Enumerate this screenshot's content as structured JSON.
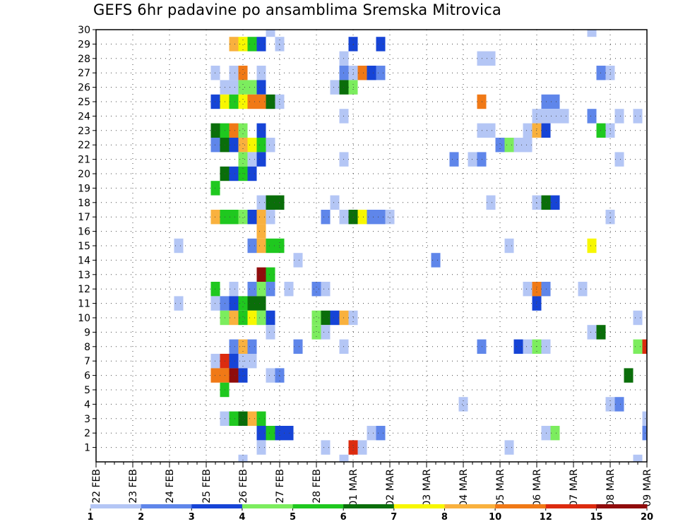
{
  "chart_data": {
    "type": "heatmap",
    "title": "GEFS 6hr padavine po ansamblima Sremska Mitrovica",
    "xlabel": "",
    "ylabel": "",
    "x_tick_labels": [
      "22 FEB",
      "23 FEB",
      "24 FEB",
      "25 FEB",
      "26 FEB",
      "27 FEB",
      "28 FEB",
      "01 MAR",
      "02 MAR",
      "03 MAR",
      "04 MAR",
      "05 MAR",
      "06 MAR",
      "07 MAR",
      "08 MAR",
      "09 MAR"
    ],
    "x_range": [
      0,
      60
    ],
    "x_unit": "6-hour step from 22 FEB 00z",
    "y_range": [
      0,
      30
    ],
    "y_ticks": [
      1,
      2,
      3,
      4,
      5,
      6,
      7,
      8,
      9,
      10,
      11,
      12,
      13,
      14,
      15,
      16,
      17,
      18,
      19,
      20,
      21,
      22,
      23,
      24,
      25,
      26,
      27,
      28,
      29,
      30
    ],
    "grid": true,
    "legend_position": "bottom",
    "legend_labels": [
      "1",
      "2",
      "3",
      "4",
      "5",
      "6",
      "7",
      "8",
      "10",
      "12",
      "15",
      "20"
    ],
    "color_scale": [
      "#b4c6f5",
      "#5f86ea",
      "#1644d6",
      "#7ced5e",
      "#1fc81f",
      "#0a6e0a",
      "#f7f700",
      "#f9b13e",
      "#f07916",
      "#dc2b0f",
      "#900c0c"
    ],
    "cells": [
      [
        19,
        30,
        1
      ],
      [
        54,
        30,
        1
      ],
      [
        15,
        29,
        8
      ],
      [
        16,
        29,
        7
      ],
      [
        17,
        29,
        5
      ],
      [
        18,
        29,
        3
      ],
      [
        20,
        29,
        1
      ],
      [
        28,
        29,
        3
      ],
      [
        31,
        29,
        3
      ],
      [
        27,
        28,
        1
      ],
      [
        42,
        28,
        1
      ],
      [
        43,
        28,
        1
      ],
      [
        13,
        27,
        1
      ],
      [
        15,
        27,
        1
      ],
      [
        16,
        27,
        9
      ],
      [
        18,
        27,
        1
      ],
      [
        27,
        27,
        2
      ],
      [
        28,
        27,
        1
      ],
      [
        29,
        27,
        9
      ],
      [
        30,
        27,
        3
      ],
      [
        31,
        27,
        2
      ],
      [
        55,
        27,
        2
      ],
      [
        56,
        27,
        1
      ],
      [
        14,
        26,
        1
      ],
      [
        15,
        26,
        1
      ],
      [
        16,
        26,
        4
      ],
      [
        17,
        26,
        4
      ],
      [
        18,
        26,
        3
      ],
      [
        26,
        26,
        1
      ],
      [
        27,
        26,
        6
      ],
      [
        28,
        26,
        4
      ],
      [
        13,
        25,
        3
      ],
      [
        14,
        25,
        7
      ],
      [
        15,
        25,
        5
      ],
      [
        16,
        25,
        7
      ],
      [
        17,
        25,
        9
      ],
      [
        18,
        25,
        9
      ],
      [
        19,
        25,
        6
      ],
      [
        20,
        25,
        1
      ],
      [
        42,
        25,
        9
      ],
      [
        49,
        25,
        2
      ],
      [
        50,
        25,
        2
      ],
      [
        27,
        24,
        1
      ],
      [
        48,
        24,
        1
      ],
      [
        49,
        24,
        1
      ],
      [
        50,
        24,
        1
      ],
      [
        51,
        24,
        1
      ],
      [
        54,
        24,
        2
      ],
      [
        57,
        24,
        1
      ],
      [
        59,
        24,
        1
      ],
      [
        13,
        23,
        6
      ],
      [
        14,
        23,
        5
      ],
      [
        15,
        23,
        9
      ],
      [
        16,
        23,
        4
      ],
      [
        18,
        23,
        3
      ],
      [
        42,
        23,
        1
      ],
      [
        43,
        23,
        1
      ],
      [
        47,
        23,
        1
      ],
      [
        48,
        23,
        8
      ],
      [
        49,
        23,
        3
      ],
      [
        55,
        23,
        5
      ],
      [
        56,
        23,
        1
      ],
      [
        13,
        22,
        2
      ],
      [
        14,
        22,
        6
      ],
      [
        15,
        22,
        3
      ],
      [
        16,
        22,
        8
      ],
      [
        17,
        22,
        7
      ],
      [
        18,
        22,
        5
      ],
      [
        19,
        22,
        1
      ],
      [
        44,
        22,
        2
      ],
      [
        45,
        22,
        4
      ],
      [
        46,
        22,
        1
      ],
      [
        47,
        22,
        1
      ],
      [
        16,
        21,
        4
      ],
      [
        17,
        21,
        1
      ],
      [
        18,
        21,
        3
      ],
      [
        27,
        21,
        1
      ],
      [
        39,
        21,
        2
      ],
      [
        41,
        21,
        1
      ],
      [
        42,
        21,
        2
      ],
      [
        57,
        21,
        1
      ],
      [
        14,
        20,
        6
      ],
      [
        15,
        20,
        3
      ],
      [
        16,
        20,
        5
      ],
      [
        17,
        20,
        3
      ],
      [
        13,
        19,
        5
      ],
      [
        18,
        18,
        1
      ],
      [
        19,
        18,
        6
      ],
      [
        20,
        18,
        6
      ],
      [
        26,
        18,
        1
      ],
      [
        43,
        18,
        1
      ],
      [
        48,
        18,
        1
      ],
      [
        49,
        18,
        6
      ],
      [
        50,
        18,
        3
      ],
      [
        13,
        17,
        8
      ],
      [
        14,
        17,
        5
      ],
      [
        15,
        17,
        5
      ],
      [
        16,
        17,
        4
      ],
      [
        17,
        17,
        3
      ],
      [
        18,
        17,
        8
      ],
      [
        19,
        17,
        1
      ],
      [
        25,
        17,
        2
      ],
      [
        27,
        17,
        1
      ],
      [
        28,
        17,
        6
      ],
      [
        29,
        17,
        7
      ],
      [
        30,
        17,
        2
      ],
      [
        31,
        17,
        2
      ],
      [
        32,
        17,
        1
      ],
      [
        56,
        17,
        1
      ],
      [
        18,
        16,
        8
      ],
      [
        9,
        15,
        1
      ],
      [
        17,
        15,
        2
      ],
      [
        18,
        15,
        8
      ],
      [
        19,
        15,
        5
      ],
      [
        20,
        15,
        5
      ],
      [
        45,
        15,
        1
      ],
      [
        54,
        15,
        7
      ],
      [
        22,
        14,
        1
      ],
      [
        37,
        14,
        2
      ],
      [
        18,
        13,
        11
      ],
      [
        19,
        13,
        5
      ],
      [
        13,
        12,
        5
      ],
      [
        15,
        12,
        1
      ],
      [
        17,
        12,
        2
      ],
      [
        18,
        12,
        4
      ],
      [
        19,
        12,
        2
      ],
      [
        21,
        12,
        1
      ],
      [
        24,
        12,
        2
      ],
      [
        25,
        12,
        1
      ],
      [
        47,
        12,
        1
      ],
      [
        48,
        12,
        9
      ],
      [
        49,
        12,
        2
      ],
      [
        53,
        12,
        1
      ],
      [
        9,
        11,
        1
      ],
      [
        13,
        11,
        1
      ],
      [
        14,
        11,
        2
      ],
      [
        15,
        11,
        3
      ],
      [
        16,
        11,
        5
      ],
      [
        17,
        11,
        6
      ],
      [
        18,
        11,
        6
      ],
      [
        48,
        11,
        3
      ],
      [
        14,
        10,
        4
      ],
      [
        15,
        10,
        8
      ],
      [
        16,
        10,
        5
      ],
      [
        17,
        10,
        7
      ],
      [
        18,
        10,
        4
      ],
      [
        19,
        10,
        3
      ],
      [
        24,
        10,
        4
      ],
      [
        25,
        10,
        6
      ],
      [
        26,
        10,
        3
      ],
      [
        27,
        10,
        8
      ],
      [
        28,
        10,
        1
      ],
      [
        59,
        10,
        1
      ],
      [
        19,
        9,
        1
      ],
      [
        24,
        9,
        4
      ],
      [
        25,
        9,
        1
      ],
      [
        54,
        9,
        1
      ],
      [
        55,
        9,
        6
      ],
      [
        15,
        8,
        2
      ],
      [
        16,
        8,
        8
      ],
      [
        17,
        8,
        2
      ],
      [
        22,
        8,
        2
      ],
      [
        27,
        8,
        1
      ],
      [
        42,
        8,
        2
      ],
      [
        46,
        8,
        3
      ],
      [
        47,
        8,
        1
      ],
      [
        48,
        8,
        4
      ],
      [
        49,
        8,
        1
      ],
      [
        59,
        8,
        4
      ],
      [
        60,
        8,
        10
      ],
      [
        13,
        7,
        1
      ],
      [
        14,
        7,
        10
      ],
      [
        15,
        7,
        3
      ],
      [
        16,
        7,
        1
      ],
      [
        17,
        7,
        1
      ],
      [
        13,
        6,
        9
      ],
      [
        14,
        6,
        9
      ],
      [
        15,
        6,
        11
      ],
      [
        16,
        6,
        3
      ],
      [
        19,
        6,
        1
      ],
      [
        20,
        6,
        2
      ],
      [
        58,
        6,
        6
      ],
      [
        14,
        5,
        5
      ],
      [
        40,
        4,
        1
      ],
      [
        56,
        4,
        1
      ],
      [
        57,
        4,
        2
      ],
      [
        14,
        3,
        1
      ],
      [
        15,
        3,
        5
      ],
      [
        16,
        3,
        6
      ],
      [
        17,
        3,
        8
      ],
      [
        18,
        3,
        5
      ],
      [
        60,
        3,
        1
      ],
      [
        18,
        2,
        3
      ],
      [
        19,
        2,
        5
      ],
      [
        20,
        2,
        3
      ],
      [
        21,
        2,
        3
      ],
      [
        30,
        2,
        1
      ],
      [
        31,
        2,
        2
      ],
      [
        49,
        2,
        1
      ],
      [
        50,
        2,
        4
      ],
      [
        60,
        2,
        2
      ],
      [
        18,
        1,
        1
      ],
      [
        25,
        1,
        1
      ],
      [
        28,
        1,
        10
      ],
      [
        29,
        1,
        1
      ],
      [
        45,
        1,
        1
      ],
      [
        16,
        0,
        1
      ],
      [
        27,
        0,
        1
      ],
      [
        59,
        0,
        1
      ]
    ]
  }
}
